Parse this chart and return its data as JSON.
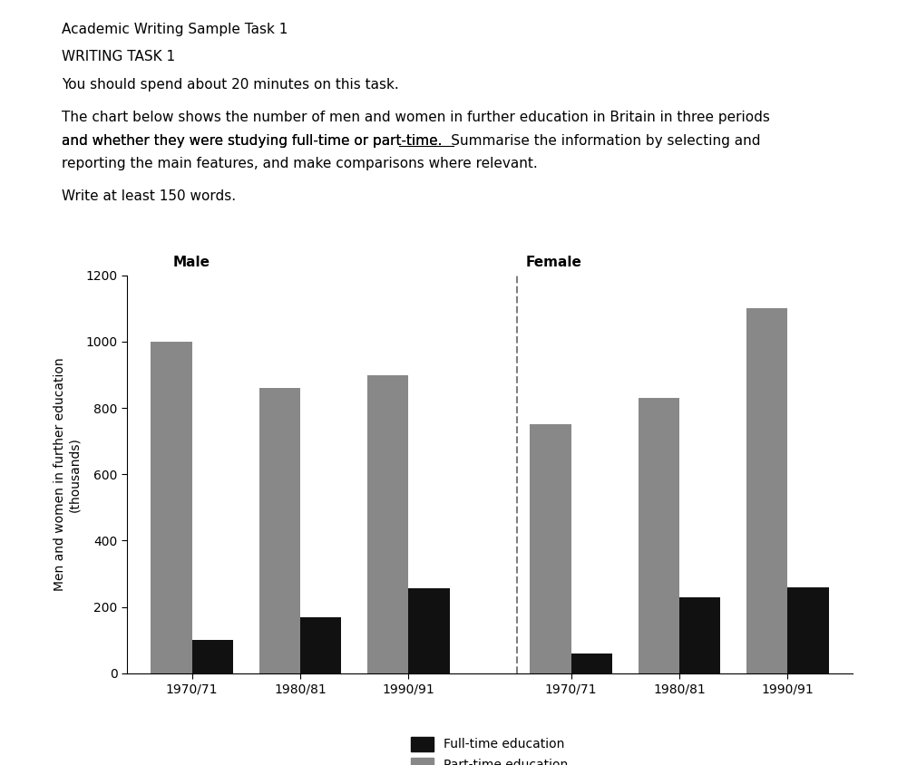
{
  "title_line1": "Academic Writing Sample Task 1",
  "title_line2": "WRITING TASK 1",
  "instruction_line1": "You should spend about 20 minutes on this task.",
  "instruction_line2": "The chart below shows the number of men and women in further education in Britain in three periods",
  "instruction_line3": "and whether they were studying full-time or part-time.  Summarise the information by selecting and",
  "instruction_line3_pre": "and whether they were studying full-time or part-time.  ",
  "instruction_line3_underline": "Summarise",
  "instruction_line3_post": " the information by selecting and",
  "instruction_line4": "reporting the main features, and make comparisons where relevant.",
  "instruction_line5": "Write at least 150 words.",
  "ylabel_line1": "Men and women in further education",
  "ylabel_line2": "(thousands)",
  "male_periods": [
    "1970/71",
    "1980/81",
    "1990/91"
  ],
  "female_periods": [
    "1970/71",
    "1980/81",
    "1990/91"
  ],
  "male_fulltime": [
    100,
    170,
    255
  ],
  "male_parttime": [
    1000,
    860,
    900
  ],
  "female_fulltime": [
    60,
    230,
    260
  ],
  "female_parttime": [
    750,
    830,
    1100
  ],
  "ylim": [
    0,
    1200
  ],
  "yticks": [
    0,
    200,
    400,
    600,
    800,
    1000,
    1200
  ],
  "bar_width": 0.38,
  "fulltime_color": "#111111",
  "parttime_color": "#888888",
  "background_color": "#ffffff",
  "legend_fulltime": "Full-time education",
  "legend_parttime": "Part-time education",
  "male_label": "Male",
  "female_label": "Female",
  "text_fontsize": 11,
  "chart_fontsize": 10
}
